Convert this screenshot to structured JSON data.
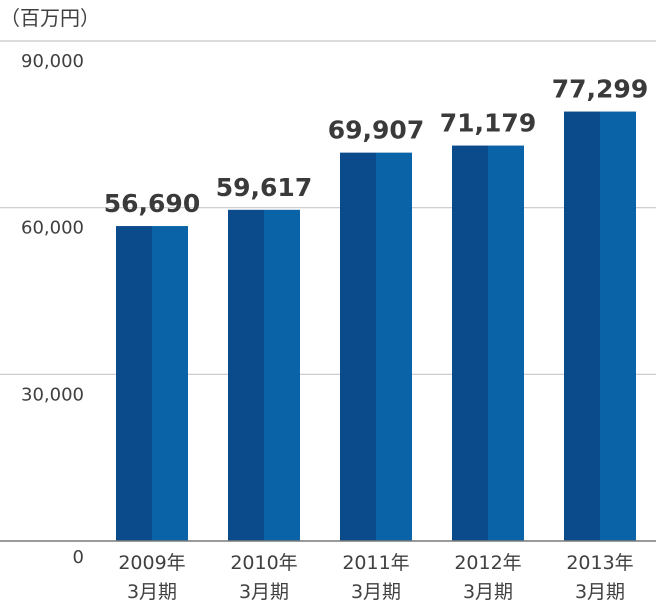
{
  "unit_label": "（百万円）",
  "colors": {
    "bar_dark": "#0b4a8b",
    "bar_light": "#0a63a6",
    "grid": "#c8c8c8",
    "axis": "#7a7a7a",
    "text": "#404040",
    "value_text": "#3a3a3a"
  },
  "chart_data": {
    "type": "bar",
    "title": "",
    "xlabel": "",
    "ylabel": "（百万円）",
    "ylim": [
      0,
      90000
    ],
    "yticks": [
      0,
      30000,
      60000,
      90000
    ],
    "ytick_labels": [
      "0",
      "30,000",
      "60,000",
      "90,000"
    ],
    "grid": true,
    "categories": [
      [
        "2009年",
        "3月期"
      ],
      [
        "2010年",
        "3月期"
      ],
      [
        "2011年",
        "3月期"
      ],
      [
        "2012年",
        "3月期"
      ],
      [
        "2013年",
        "3月期"
      ]
    ],
    "values": [
      56690,
      59617,
      69907,
      71179,
      77299
    ],
    "value_labels": [
      "56,690",
      "59,617",
      "69,907",
      "71,179",
      "77,299"
    ]
  }
}
